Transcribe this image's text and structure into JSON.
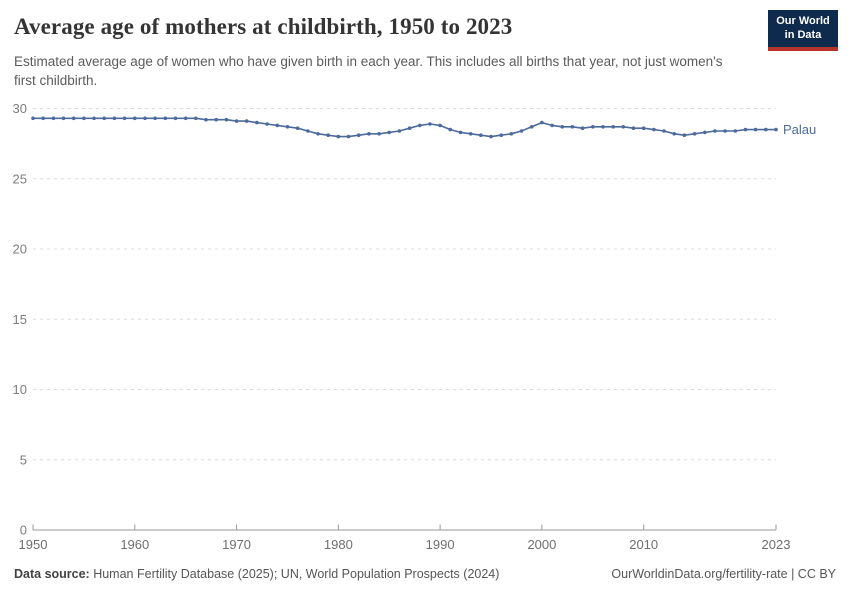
{
  "header": {
    "title": "Average age of mothers at childbirth, 1950 to 2023",
    "subtitle": "Estimated average age of women who have given birth in each year. This includes all births that year, not just women's first childbirth.",
    "logo": {
      "line1": "Our World",
      "line2": "in Data",
      "bg_color": "#0e2a4d",
      "accent_color": "#b5342c"
    }
  },
  "chart_data": {
    "type": "line",
    "title": "Average age of mothers at childbirth, 1950 to 2023",
    "entity_label": "Palau",
    "line_color": "#4c6a9c",
    "grid": "horizontal-dashed",
    "legend_position": "end-of-line",
    "xlabel": "",
    "ylabel": "",
    "xlim": [
      1950,
      2023
    ],
    "ylim": [
      0,
      30
    ],
    "xticks": [
      1950,
      1960,
      1970,
      1980,
      1990,
      2000,
      2010,
      2023
    ],
    "yticks": [
      0,
      5,
      10,
      15,
      20,
      25,
      30
    ],
    "x": [
      1950,
      1951,
      1952,
      1953,
      1954,
      1955,
      1956,
      1957,
      1958,
      1959,
      1960,
      1961,
      1962,
      1963,
      1964,
      1965,
      1966,
      1967,
      1968,
      1969,
      1970,
      1971,
      1972,
      1973,
      1974,
      1975,
      1976,
      1977,
      1978,
      1979,
      1980,
      1981,
      1982,
      1983,
      1984,
      1985,
      1986,
      1987,
      1988,
      1989,
      1990,
      1991,
      1992,
      1993,
      1994,
      1995,
      1996,
      1997,
      1998,
      1999,
      2000,
      2001,
      2002,
      2003,
      2004,
      2005,
      2006,
      2007,
      2008,
      2009,
      2010,
      2011,
      2012,
      2013,
      2014,
      2015,
      2016,
      2017,
      2018,
      2019,
      2020,
      2021,
      2022,
      2023
    ],
    "series": [
      {
        "name": "Palau",
        "values": [
          29.3,
          29.3,
          29.3,
          29.3,
          29.3,
          29.3,
          29.3,
          29.3,
          29.3,
          29.3,
          29.3,
          29.3,
          29.3,
          29.3,
          29.3,
          29.3,
          29.3,
          29.2,
          29.2,
          29.2,
          29.1,
          29.1,
          29.0,
          28.9,
          28.8,
          28.7,
          28.6,
          28.4,
          28.2,
          28.1,
          28.0,
          28.0,
          28.1,
          28.2,
          28.2,
          28.3,
          28.4,
          28.6,
          28.8,
          28.9,
          28.8,
          28.5,
          28.3,
          28.2,
          28.1,
          28.0,
          28.1,
          28.2,
          28.4,
          28.7,
          29.0,
          28.8,
          28.7,
          28.7,
          28.6,
          28.7,
          28.7,
          28.7,
          28.7,
          28.6,
          28.6,
          28.5,
          28.4,
          28.2,
          28.1,
          28.2,
          28.3,
          28.4,
          28.4,
          28.4,
          28.5,
          28.5,
          28.5,
          28.5
        ]
      }
    ]
  },
  "footer": {
    "source_label": "Data source:",
    "source_text": " Human Fertility Database (2025); UN, World Population Prospects (2024)",
    "right_text": "OurWorldinData.org/fertility-rate | CC BY"
  }
}
